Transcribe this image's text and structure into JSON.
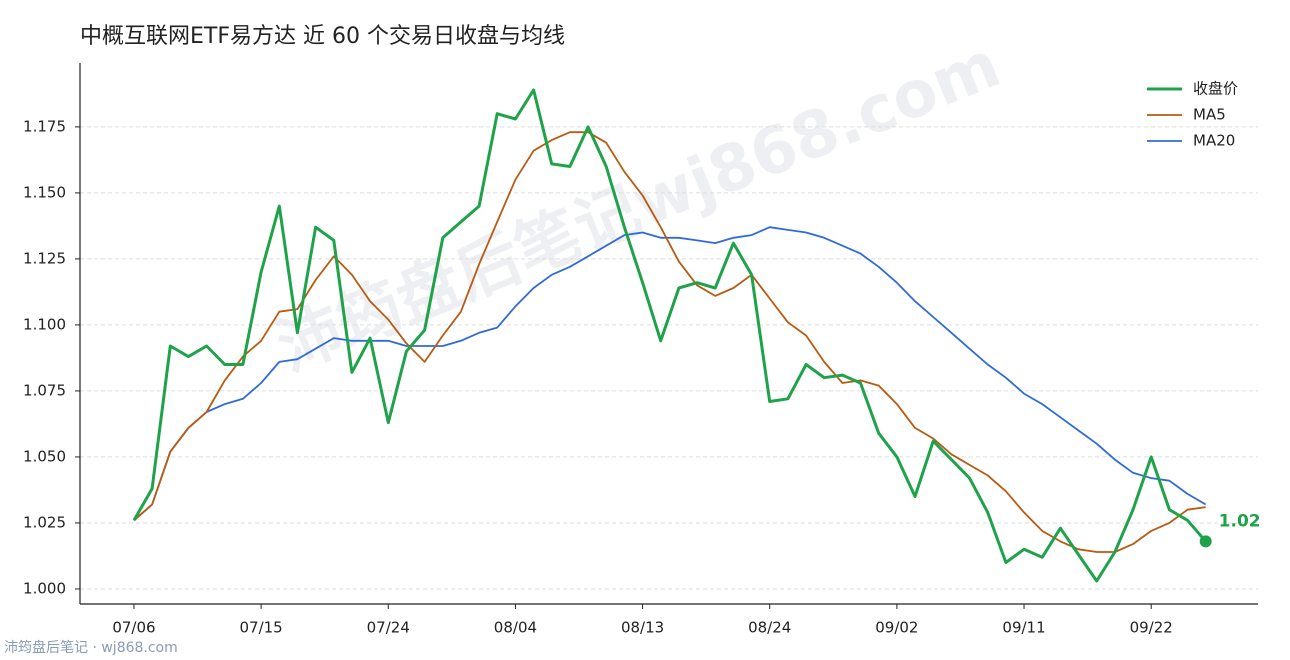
{
  "chart_data": {
    "type": "line",
    "title": "中概互联网ETF易方达 近 60 个交易日收盘与均线",
    "watermark": "沛筠盘后笔记wj868.com",
    "footer": "沛筠盘后笔记 · wj868.com",
    "categories": [
      "07/06",
      null,
      null,
      null,
      null,
      null,
      null,
      "07/15",
      null,
      null,
      null,
      null,
      null,
      null,
      "07/24",
      null,
      null,
      null,
      null,
      null,
      null,
      "08/04",
      null,
      null,
      null,
      null,
      null,
      null,
      "08/13",
      null,
      null,
      null,
      null,
      null,
      null,
      "08/24",
      null,
      null,
      null,
      null,
      null,
      null,
      "09/02",
      null,
      null,
      null,
      null,
      null,
      null,
      "09/11",
      null,
      null,
      null,
      null,
      null,
      null,
      "09/22",
      null,
      null,
      null
    ],
    "series": [
      {
        "name": "收盘价",
        "color": "#1fa34a",
        "width": 3,
        "values": [
          1.026,
          1.038,
          1.092,
          1.088,
          1.092,
          1.085,
          1.085,
          1.12,
          1.145,
          1.097,
          1.137,
          1.132,
          1.082,
          1.095,
          1.063,
          1.09,
          1.098,
          1.133,
          1.139,
          1.145,
          1.18,
          1.178,
          1.189,
          1.161,
          1.16,
          1.175,
          1.16,
          1.137,
          1.116,
          1.094,
          1.114,
          1.116,
          1.114,
          1.131,
          1.119,
          1.071,
          1.072,
          1.085,
          1.08,
          1.081,
          1.078,
          1.059,
          1.05,
          1.035,
          1.056,
          1.049,
          1.042,
          1.029,
          1.01,
          1.015,
          1.012,
          1.023,
          1.013,
          1.003,
          1.014,
          1.03,
          1.05,
          1.03,
          1.026,
          1.018
        ],
        "value_labels": [
          null,
          null,
          null,
          null,
          null,
          null,
          null,
          null,
          null,
          null,
          null,
          null,
          null,
          null,
          null,
          null,
          null,
          null,
          null,
          null,
          null,
          null,
          null,
          null,
          null,
          null,
          null,
          null,
          null,
          null,
          null,
          null,
          null,
          null,
          null,
          null,
          null,
          null,
          null,
          null,
          null,
          null,
          null,
          null,
          null,
          null,
          null,
          null,
          null,
          null,
          null,
          null,
          null,
          null,
          null,
          null,
          null,
          null,
          null,
          "1.02"
        ]
      },
      {
        "name": "MA5",
        "color": "#b85a12",
        "width": 1.8,
        "values": [
          1.026,
          1.032,
          1.052,
          1.061,
          1.067,
          1.079,
          1.088,
          1.094,
          1.105,
          1.106,
          1.117,
          1.126,
          1.119,
          1.109,
          1.102,
          1.093,
          1.086,
          1.096,
          1.105,
          1.123,
          1.139,
          1.155,
          1.166,
          1.17,
          1.173,
          1.173,
          1.169,
          1.158,
          1.149,
          1.137,
          1.124,
          1.115,
          1.111,
          1.114,
          1.119,
          1.11,
          1.101,
          1.096,
          1.086,
          1.078,
          1.079,
          1.077,
          1.07,
          1.061,
          1.057,
          1.051,
          1.047,
          1.043,
          1.037,
          1.029,
          1.022,
          1.018,
          1.015,
          1.014,
          1.014,
          1.017,
          1.022,
          1.025,
          1.03,
          1.031
        ]
      },
      {
        "name": "MA20",
        "color": "#2f6bd8",
        "width": 1.8,
        "values": [
          1.026,
          1.032,
          1.052,
          1.061,
          1.067,
          1.07,
          1.072,
          1.078,
          1.086,
          1.087,
          1.091,
          1.095,
          1.094,
          1.094,
          1.094,
          1.092,
          1.092,
          1.092,
          1.094,
          1.097,
          1.099,
          1.107,
          1.114,
          1.119,
          1.122,
          1.126,
          1.13,
          1.134,
          1.135,
          1.133,
          1.133,
          1.132,
          1.131,
          1.133,
          1.134,
          1.137,
          1.136,
          1.135,
          1.133,
          1.13,
          1.127,
          1.122,
          1.116,
          1.109,
          1.103,
          1.097,
          1.091,
          1.085,
          1.08,
          1.074,
          1.07,
          1.065,
          1.06,
          1.055,
          1.049,
          1.044,
          1.042,
          1.041,
          1.036,
          1.032
        ]
      }
    ],
    "ylim": [
      0.9943,
      1.1992
    ],
    "yticks": [
      {
        "value": 1,
        "label": "1.000"
      },
      1.025,
      {
        "value": 1.05,
        "label": "1.050"
      },
      1.075,
      {
        "value": 1.1,
        "label": "1.100"
      },
      1.125,
      {
        "value": 1.15,
        "label": "1.150"
      },
      1.175
    ],
    "grid": true,
    "legend": "upper right"
  }
}
